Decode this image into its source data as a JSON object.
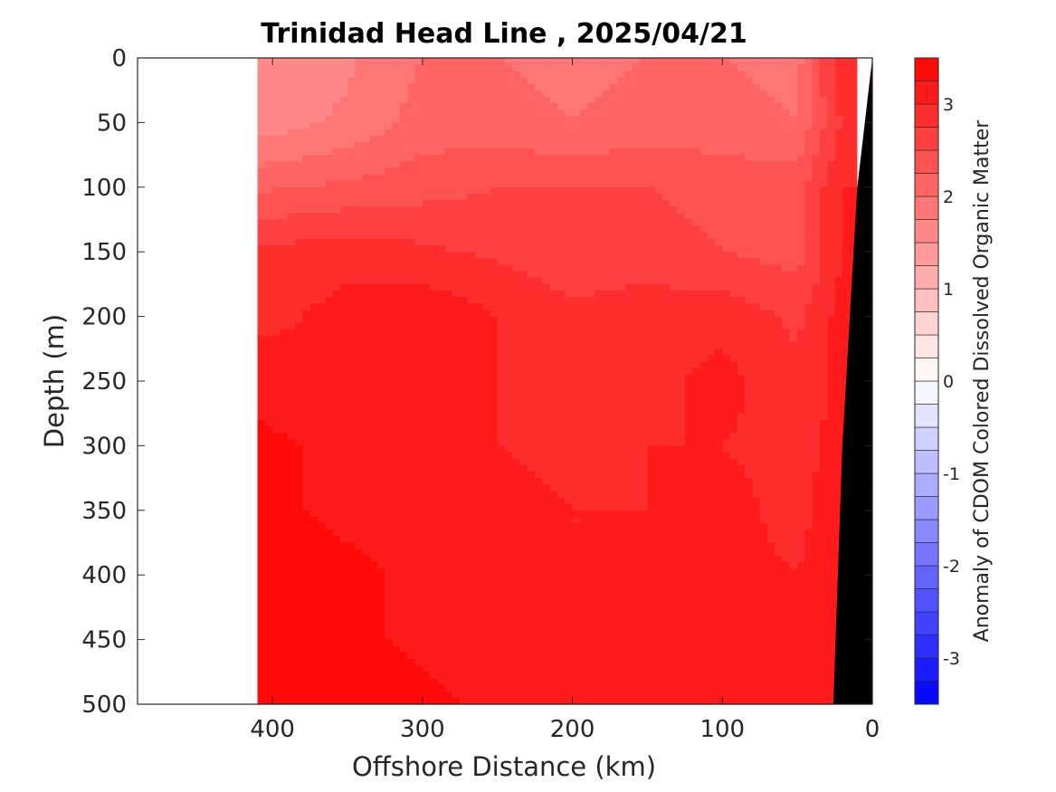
{
  "chart_data": {
    "type": "heatmap",
    "title": "Trinidad Head Line , 2025/04/21",
    "xlabel": "Offshore Distance (km)",
    "ylabel": "Depth (m)",
    "xlim": [
      490,
      0
    ],
    "ylim": [
      0,
      500
    ],
    "x_reversed": true,
    "y_reversed": true,
    "xticks": [
      400,
      300,
      200,
      100,
      0
    ],
    "yticks": [
      0,
      50,
      100,
      150,
      200,
      250,
      300,
      350,
      400,
      450,
      500
    ],
    "data_x_extent": [
      410,
      0
    ],
    "colorbar": {
      "label": "Anomaly of CDOM Colored Dissolved Organic Matter",
      "lim": [
        -3.5,
        3.5
      ],
      "ticks": [
        -3,
        -2,
        -1,
        0,
        1,
        2,
        3
      ],
      "levels": 28,
      "colormap": "blue-white-red",
      "low_color": "#0000ff",
      "high_color": "#ff0000"
    },
    "field": {
      "depth_m": [
        0,
        50,
        100,
        150,
        200,
        250,
        300,
        350,
        400,
        450,
        500
      ],
      "distance_km": [
        410,
        350,
        300,
        250,
        200,
        150,
        100,
        50,
        20
      ],
      "anomaly": [
        [
          1.6,
          1.7,
          2.0,
          2.0,
          1.9,
          2.0,
          2.0,
          1.9,
          3.0
        ],
        [
          1.6,
          1.8,
          2.1,
          2.1,
          2.0,
          2.1,
          2.1,
          2.0,
          2.8
        ],
        [
          2.2,
          2.3,
          2.4,
          2.5,
          2.5,
          2.5,
          2.4,
          2.4,
          3.0
        ],
        [
          2.8,
          2.9,
          2.8,
          2.7,
          2.6,
          2.6,
          2.5,
          2.4,
          3.0
        ],
        [
          2.9,
          3.1,
          3.2,
          3.0,
          2.8,
          2.9,
          2.9,
          2.7,
          3.1
        ],
        [
          3.2,
          3.0,
          3.2,
          3.0,
          3.0,
          2.9,
          3.1,
          2.8,
          3.1
        ],
        [
          3.3,
          3.2,
          3.1,
          3.0,
          2.9,
          3.0,
          3.0,
          2.9,
          3.1
        ],
        [
          3.3,
          3.2,
          3.1,
          3.1,
          3.0,
          3.0,
          3.1,
          2.9,
          3.2
        ],
        [
          3.4,
          3.3,
          3.2,
          3.1,
          3.0,
          3.0,
          3.1,
          3.0,
          3.2
        ],
        [
          3.4,
          3.3,
          3.2,
          3.2,
          3.1,
          3.1,
          3.2,
          3.0,
          3.2
        ],
        [
          3.5,
          3.4,
          3.3,
          3.2,
          3.1,
          3.2,
          3.2,
          3.0,
          3.2
        ]
      ]
    },
    "bathymetry_km": [
      {
        "depth_m": 0,
        "distance_km": 0
      },
      {
        "depth_m": 100,
        "distance_km": 10
      },
      {
        "depth_m": 300,
        "distance_km": 20
      },
      {
        "depth_m": 500,
        "distance_km": 26
      }
    ],
    "bathymetry_color": "#000000"
  }
}
